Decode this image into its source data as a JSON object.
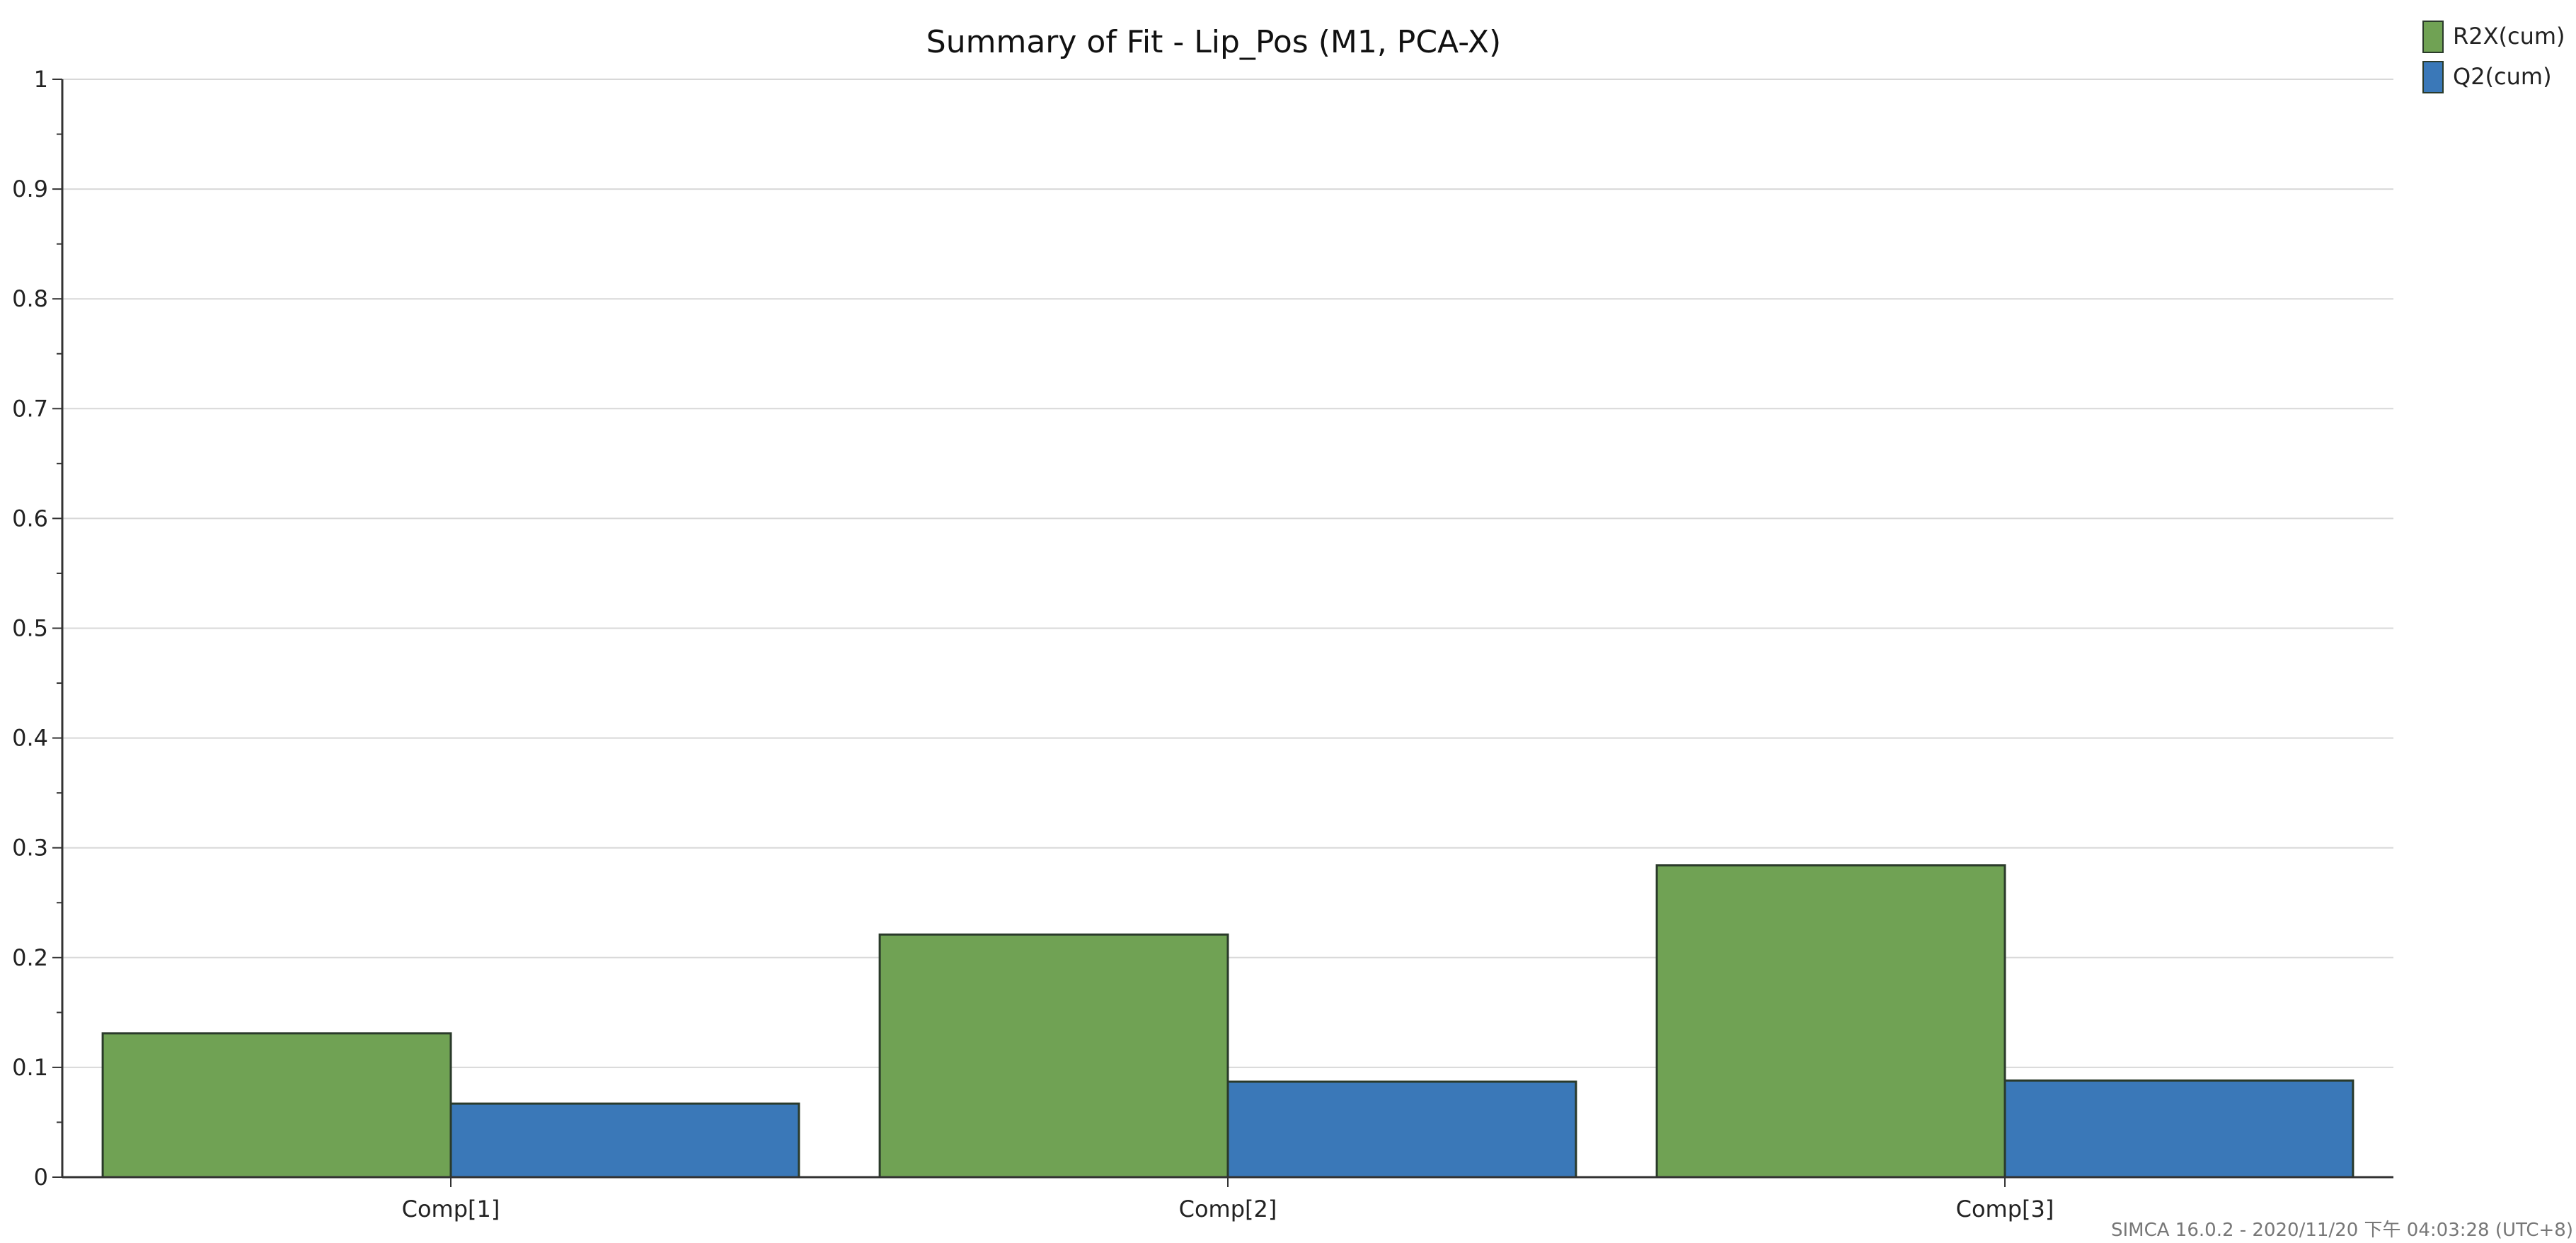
{
  "chart_data": {
    "type": "bar",
    "title": "Summary of Fit - Lip_Pos (M1, PCA-X)",
    "xlabel": "",
    "ylabel": "",
    "categories": [
      "Comp[1]",
      "Comp[2]",
      "Comp[3]"
    ],
    "series": [
      {
        "name": "R2X(cum)",
        "color": "#70a254",
        "values": [
          0.131,
          0.221,
          0.284
        ]
      },
      {
        "name": "Q2(cum)",
        "color": "#3a78b8",
        "values": [
          0.067,
          0.087,
          0.088
        ]
      }
    ],
    "ylim": [
      0,
      1
    ],
    "yticks": [
      "0",
      "0.1",
      "0.2",
      "0.3",
      "0.4",
      "0.5",
      "0.6",
      "0.7",
      "0.8",
      "0.9",
      "1"
    ],
    "grid": true,
    "legend_position": "top-right"
  },
  "footer": "SIMCA 16.0.2 - 2020/11/20 下午 04:03:28 (UTC+8)"
}
